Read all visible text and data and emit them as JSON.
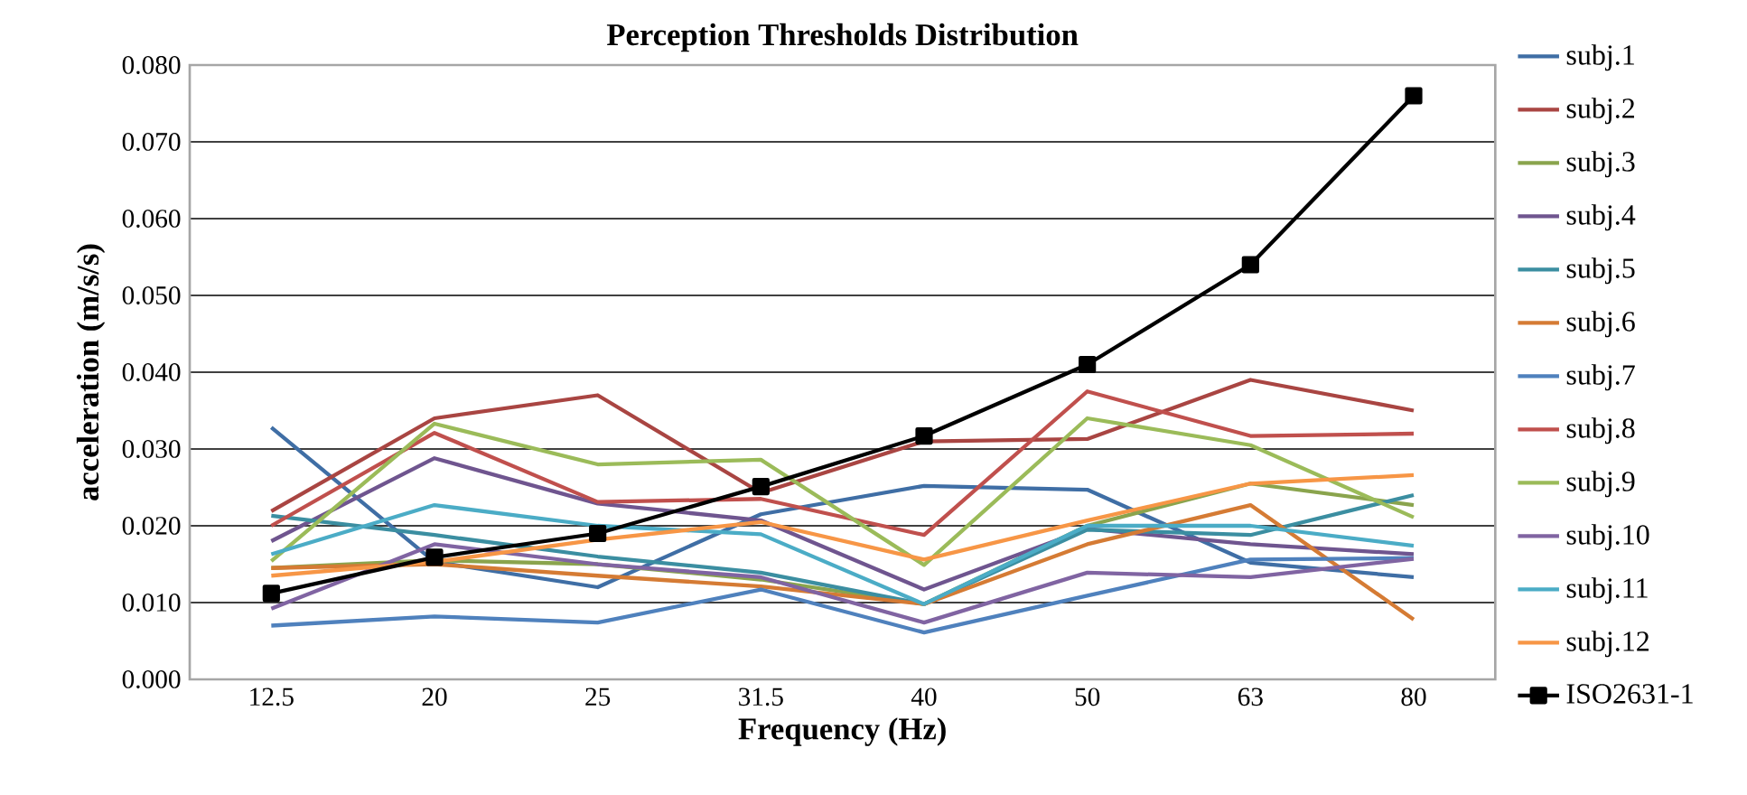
{
  "chart_data": {
    "type": "line",
    "title": "Perception Thresholds Distribution",
    "xlabel": "Frequency (Hz)",
    "ylabel": "acceleration (m/s/s)",
    "categories": [
      "12.5",
      "20",
      "25",
      "31.5",
      "40",
      "50",
      "63",
      "80"
    ],
    "ylim": [
      0,
      0.08
    ],
    "yticks": [
      {
        "value": 0,
        "label": "0.000"
      },
      {
        "value": 0.01,
        "label": "0.010"
      },
      {
        "value": 0.02,
        "label": "0.020"
      },
      {
        "value": 0.03,
        "label": "0.030"
      },
      {
        "value": 0.04,
        "label": "0.040"
      },
      {
        "value": 0.05,
        "label": "0.050"
      },
      {
        "value": 0.06,
        "label": "0.060"
      },
      {
        "value": 0.07,
        "label": "0.070"
      },
      {
        "value": 0.08,
        "label": "0.080"
      }
    ],
    "grid": "y",
    "legend": "right",
    "marker": "none",
    "line_style": "solid",
    "series": [
      {
        "name": "subj.1",
        "color": "#3f6ea5",
        "values": [
          0.0328,
          0.0153,
          0.012,
          0.0215,
          0.0252,
          0.0247,
          0.0152,
          0.0133
        ]
      },
      {
        "name": "subj.2",
        "color": "#a94542",
        "values": [
          0.0219,
          0.034,
          0.037,
          0.0243,
          0.031,
          0.0313,
          0.039,
          0.035
        ]
      },
      {
        "name": "subj.3",
        "color": "#8aa44d",
        "values": [
          0.0145,
          0.0155,
          0.015,
          0.013,
          0.0098,
          0.02,
          0.0255,
          0.0227
        ]
      },
      {
        "name": "subj.4",
        "color": "#6f558f",
        "values": [
          0.018,
          0.0288,
          0.0229,
          0.0207,
          0.0117,
          0.0196,
          0.0176,
          0.0163
        ]
      },
      {
        "name": "subj.5",
        "color": "#3b8ea1",
        "values": [
          0.0213,
          0.0188,
          0.016,
          0.0139,
          0.0098,
          0.0195,
          0.0188,
          0.024
        ]
      },
      {
        "name": "subj.6",
        "color": "#d57b34",
        "values": [
          0.0145,
          0.015,
          0.0135,
          0.0121,
          0.0098,
          0.0176,
          0.0227,
          0.0078
        ]
      },
      {
        "name": "subj.7",
        "color": "#4f81bd",
        "values": [
          0.007,
          0.0082,
          0.0074,
          0.0117,
          0.0061,
          0.0109,
          0.0156,
          0.0158
        ]
      },
      {
        "name": "subj.8",
        "color": "#c0504d",
        "values": [
          0.02,
          0.0321,
          0.0231,
          0.0235,
          0.0188,
          0.0375,
          0.0317,
          0.032
        ]
      },
      {
        "name": "subj.9",
        "color": "#9bbb59",
        "values": [
          0.0154,
          0.0333,
          0.028,
          0.0286,
          0.0149,
          0.034,
          0.0305,
          0.0211
        ]
      },
      {
        "name": "subj.10",
        "color": "#8064a2",
        "values": [
          0.0092,
          0.0176,
          0.015,
          0.0133,
          0.0074,
          0.0139,
          0.0133,
          0.0157
        ]
      },
      {
        "name": "subj.11",
        "color": "#4bacc6",
        "values": [
          0.0163,
          0.0227,
          0.02,
          0.0189,
          0.0098,
          0.02,
          0.02,
          0.0174
        ]
      },
      {
        "name": "subj.12",
        "color": "#f79646",
        "values": [
          0.0135,
          0.0153,
          0.0182,
          0.0205,
          0.0156,
          0.0207,
          0.0255,
          0.0266
        ]
      },
      {
        "name": "ISO2631-1",
        "color": "#000000",
        "marker": "square",
        "values": [
          0.0112,
          0.0159,
          0.019,
          0.0251,
          0.0317,
          0.041,
          0.054,
          0.076
        ]
      }
    ]
  }
}
